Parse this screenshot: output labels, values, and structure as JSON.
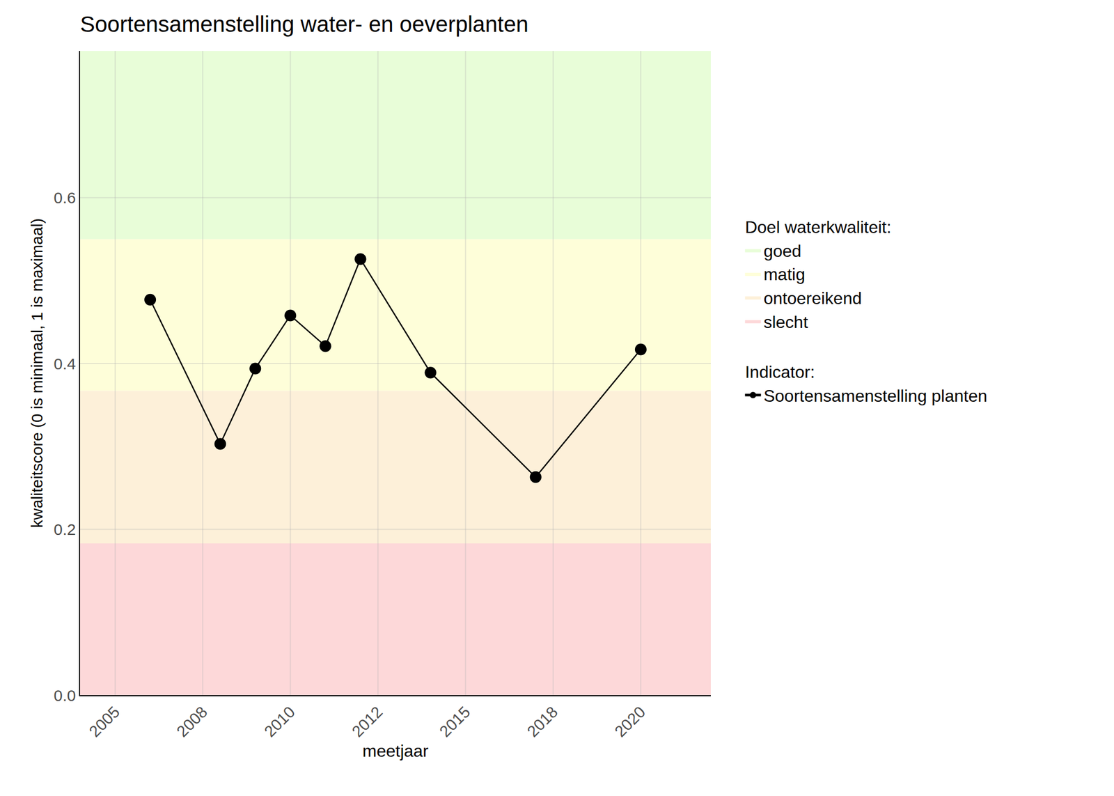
{
  "chart_data": {
    "type": "line",
    "title": "Soortensamenstelling water- en oeverplanten",
    "x_label": "meetjaar",
    "y_label": "kwaliteitscore (0 is minimaal, 1 is maximaal)",
    "x": [
      2006,
      2008,
      2009,
      2010,
      2011,
      2012,
      2014,
      2017,
      2020
    ],
    "series": [
      {
        "name": "Soortensamenstelling planten",
        "color": "#000000",
        "marker": "circle",
        "line_style": "solid",
        "values": [
          0.477,
          0.303,
          0.394,
          0.458,
          0.421,
          0.526,
          0.389,
          0.263,
          0.417
        ]
      }
    ],
    "series_title": "Indicator:",
    "bands_title": "Doel waterkwaliteit:",
    "bands": [
      {
        "name": "goed",
        "from": 0.55,
        "to": 0.777,
        "color": "#e8fdd8"
      },
      {
        "name": "matig",
        "from": 0.367,
        "to": 0.55,
        "color": "#fefed9"
      },
      {
        "name": "ontoereikend",
        "from": 0.183,
        "to": 0.367,
        "color": "#fdf0d9"
      },
      {
        "name": "slecht",
        "from": 0,
        "to": 0.183,
        "color": "#fdd8d9"
      }
    ],
    "xlim": [
      2004,
      2022
    ],
    "xticks": [
      2005,
      {
        "value": 2007.5,
        "label": "2008"
      },
      2010,
      {
        "value": 2012.5,
        "label": "2012"
      },
      2015,
      {
        "value": 2017.5,
        "label": "2018"
      },
      2020
    ],
    "ylim": [
      0,
      0.777
    ],
    "yticks": [
      {
        "value": 0,
        "label": "0.0"
      },
      0.2,
      0.4,
      0.6
    ],
    "grid": true,
    "legend": "right"
  }
}
